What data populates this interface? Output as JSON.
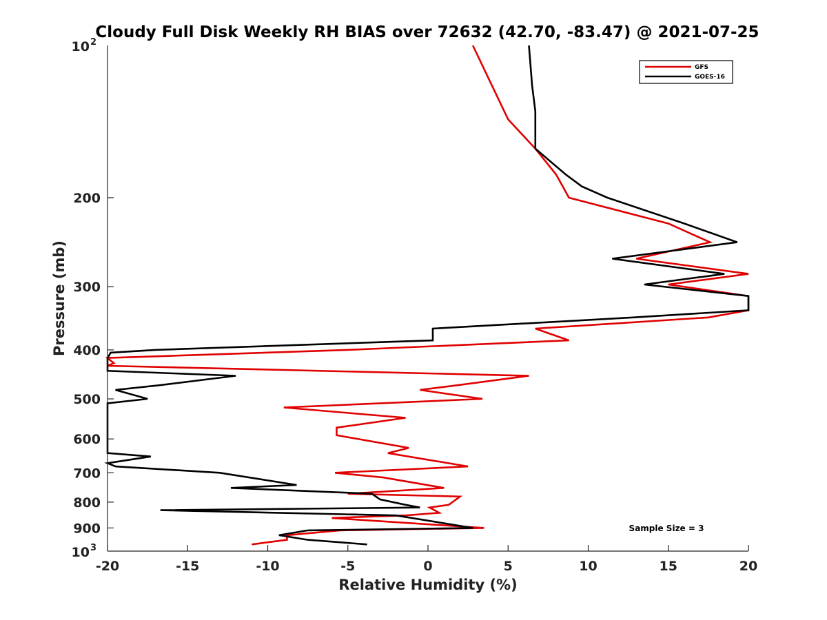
{
  "chart_data": {
    "type": "line",
    "title": "Cloudy Full Disk Weekly RH BIAS over 72632 (42.70, -83.47) @ 2021-07-25",
    "xlabel": "Relative Humidity (%)",
    "ylabel": "Pressure (mb)",
    "xlim": [
      -20,
      20
    ],
    "ylim": [
      100,
      1000
    ],
    "y_scale": "log",
    "y_reversed": true,
    "grid": false,
    "legend_position": "top-right",
    "x_ticks": [
      -20,
      -15,
      -10,
      -5,
      0,
      5,
      10,
      15,
      20
    ],
    "x_tick_labels": [
      "-20",
      "-15",
      "-10",
      "-5",
      "0",
      "5",
      "10",
      "15",
      "20"
    ],
    "y_ticks": [
      200,
      300,
      400,
      500,
      600,
      700,
      800,
      900
    ],
    "y_tick_labels": [
      "200",
      "300",
      "400",
      "500",
      "600",
      "700",
      "800",
      "900"
    ],
    "y_bound_labels": [
      {
        "base": "10",
        "exp": "2",
        "value": 100
      },
      {
        "base": "10",
        "exp": "3",
        "value": 1000
      }
    ],
    "annotation": "Sample Size = 3",
    "series": [
      {
        "name": "GFS",
        "color": "#e00000",
        "points": [
          [
            2.8,
            100
          ],
          [
            5.0,
            140
          ],
          [
            6.7,
            160
          ],
          [
            8.0,
            180
          ],
          [
            8.8,
            200
          ],
          [
            15.0,
            225
          ],
          [
            17.6,
            245
          ],
          [
            13.0,
            264
          ],
          [
            20.0,
            283
          ],
          [
            15.0,
            297
          ],
          [
            20.0,
            313
          ],
          [
            20.0,
            334
          ],
          [
            17.5,
            345
          ],
          [
            6.7,
            363
          ],
          [
            8.8,
            383
          ],
          [
            -5.0,
            400
          ],
          [
            -20.0,
            415
          ],
          [
            -19.8,
            420
          ],
          [
            -19.6,
            425
          ],
          [
            -20.0,
            430
          ],
          [
            6.3,
            450
          ],
          [
            1.8,
            470
          ],
          [
            -0.5,
            480
          ],
          [
            3.4,
            500
          ],
          [
            -9.0,
            520
          ],
          [
            -1.4,
            545
          ],
          [
            -5.7,
            570
          ],
          [
            -5.7,
            590
          ],
          [
            -1.2,
            625
          ],
          [
            -2.5,
            640
          ],
          [
            2.5,
            680
          ],
          [
            -5.8,
            700
          ],
          [
            -2.8,
            715
          ],
          [
            1.0,
            750
          ],
          [
            -5.0,
            770
          ],
          [
            2.0,
            780
          ],
          [
            1.3,
            810
          ],
          [
            0.1,
            820
          ],
          [
            0.7,
            840
          ],
          [
            -1.4,
            850
          ],
          [
            -6.0,
            860
          ],
          [
            3.5,
            900
          ],
          [
            -5.5,
            910
          ],
          [
            -8.8,
            930
          ],
          [
            -8.8,
            950
          ],
          [
            -11.0,
            970
          ]
        ]
      },
      {
        "name": "GOES-16",
        "color": "#000000",
        "points": [
          [
            6.3,
            100
          ],
          [
            6.5,
            120
          ],
          [
            6.7,
            135
          ],
          [
            6.7,
            160
          ],
          [
            8.6,
            180
          ],
          [
            9.6,
            190
          ],
          [
            11.2,
            200
          ],
          [
            16.0,
            225
          ],
          [
            19.3,
            245
          ],
          [
            11.5,
            264
          ],
          [
            18.5,
            283
          ],
          [
            13.5,
            297
          ],
          [
            20.0,
            313
          ],
          [
            20.0,
            334
          ],
          [
            12.8,
            345
          ],
          [
            0.3,
            363
          ],
          [
            0.3,
            383
          ],
          [
            -17.0,
            400
          ],
          [
            -19.8,
            405
          ],
          [
            -20.0,
            415
          ],
          [
            -20.0,
            440
          ],
          [
            -12.0,
            450
          ],
          [
            -16.8,
            470
          ],
          [
            -19.5,
            480
          ],
          [
            -17.5,
            500
          ],
          [
            -20.0,
            510
          ],
          [
            -20.0,
            640
          ],
          [
            -17.3,
            650
          ],
          [
            -20.0,
            670
          ],
          [
            -19.5,
            680
          ],
          [
            -13.0,
            700
          ],
          [
            -8.2,
            740
          ],
          [
            -12.3,
            750
          ],
          [
            -3.5,
            770
          ],
          [
            -3.0,
            790
          ],
          [
            -1.4,
            810
          ],
          [
            -0.5,
            820
          ],
          [
            -16.7,
            830
          ],
          [
            -2.0,
            850
          ],
          [
            2.8,
            900
          ],
          [
            -7.5,
            910
          ],
          [
            -9.3,
            930
          ],
          [
            -7.5,
            950
          ],
          [
            -3.8,
            970
          ]
        ]
      }
    ]
  }
}
